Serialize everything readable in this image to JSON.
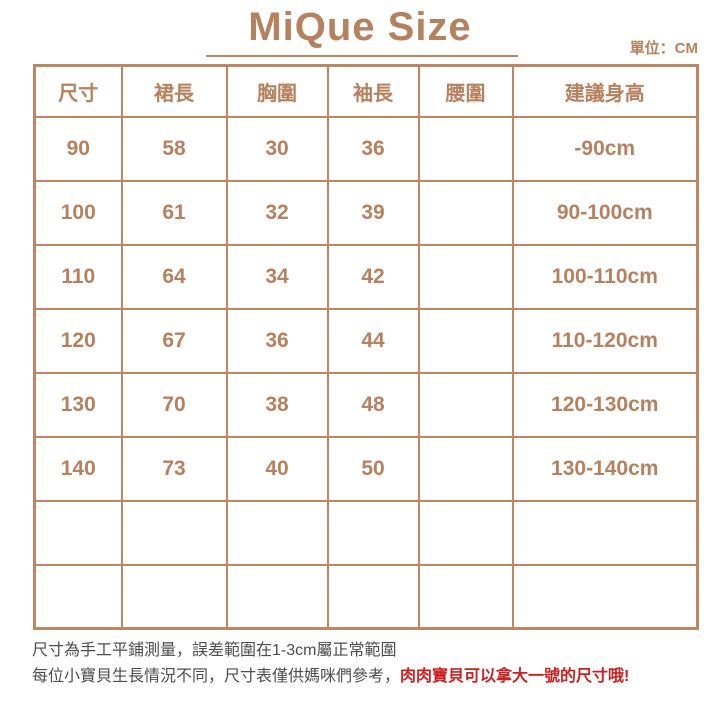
{
  "title": "MiQue Size",
  "unit_label": "單位：CM",
  "chart_data": {
    "type": "table",
    "title": "MiQue Size",
    "unit": "CM",
    "columns": [
      "尺寸",
      "裙長",
      "胸圍",
      "袖長",
      "腰圍",
      "建議身高"
    ],
    "rows": [
      [
        "90",
        "58",
        "30",
        "36",
        "",
        "-90cm"
      ],
      [
        "100",
        "61",
        "32",
        "39",
        "",
        "90-100cm"
      ],
      [
        "110",
        "64",
        "34",
        "42",
        "",
        "100-110cm"
      ],
      [
        "120",
        "67",
        "36",
        "44",
        "",
        "110-120cm"
      ],
      [
        "130",
        "70",
        "38",
        "48",
        "",
        "120-130cm"
      ],
      [
        "140",
        "73",
        "40",
        "50",
        "",
        "130-140cm"
      ],
      [
        "",
        "",
        "",
        "",
        "",
        ""
      ],
      [
        "",
        "",
        "",
        "",
        "",
        ""
      ]
    ]
  },
  "footer": {
    "line1": "尺寸為手工平鋪測量，誤差範圍在1-3cm屬正常範圍",
    "line2_normal": "每位小寶貝生長情況不同，尺寸表僅供媽咪們參考，",
    "line2_highlight": "肉肉寶貝可以拿大一號的尺寸哦!"
  },
  "colors": {
    "accent_brown": "#bd8763",
    "text_brown": "#b5815e",
    "footer_text": "#4d4d4d",
    "highlight_red": "#cc2020"
  }
}
